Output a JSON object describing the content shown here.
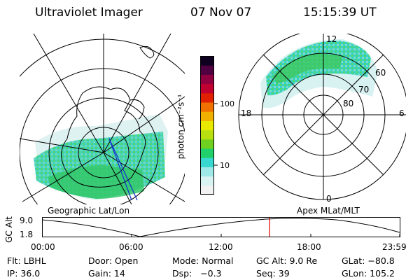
{
  "header": {
    "instrument": "Ultraviolet Imager",
    "date": "07 Nov 07",
    "time": "15:15:39 UT"
  },
  "left_map": {
    "caption": "Geographic Lat/Lon"
  },
  "right_map": {
    "caption": "Apex MLat/MLT",
    "mlt_labels": {
      "top": "12",
      "left": "18",
      "right": "6",
      "bottom": "0"
    },
    "lat_labels": [
      "60",
      "70",
      "80"
    ]
  },
  "colorbar": {
    "unit_label": "photon cm⁻²s⁻¹",
    "scale": "log",
    "ticks": [
      "100",
      "10"
    ],
    "colors": [
      "#f2f2f2",
      "#d9f2f2",
      "#9ee8e8",
      "#38d8d0",
      "#20d06a",
      "#70d020",
      "#b8e010",
      "#e8e800",
      "#f0b000",
      "#f07000",
      "#e02000",
      "#c00030",
      "#900040",
      "#500040",
      "#100020"
    ]
  },
  "altitude_plot": {
    "y_label": "GC Alt",
    "y_ticks": [
      "9.0",
      "1.8"
    ],
    "x_ticks": [
      "00:00",
      "06:00",
      "12:00",
      "18:00",
      "23:59"
    ],
    "current_time_marker": "15:15:39"
  },
  "status": {
    "row1": {
      "filter": "Flt: LBHL",
      "door": "Door: Open",
      "mode": "Mode: Normal",
      "gc_alt": "GC Alt: 9.0 Re",
      "glat": "GLat: −80.8"
    },
    "row2": {
      "ip": "IP: 36.0",
      "gain": "Gain: 14",
      "dsp": "Dsp:   −0.3",
      "seq": "Seq: 39",
      "glon": "GLon: 105.2"
    }
  }
}
